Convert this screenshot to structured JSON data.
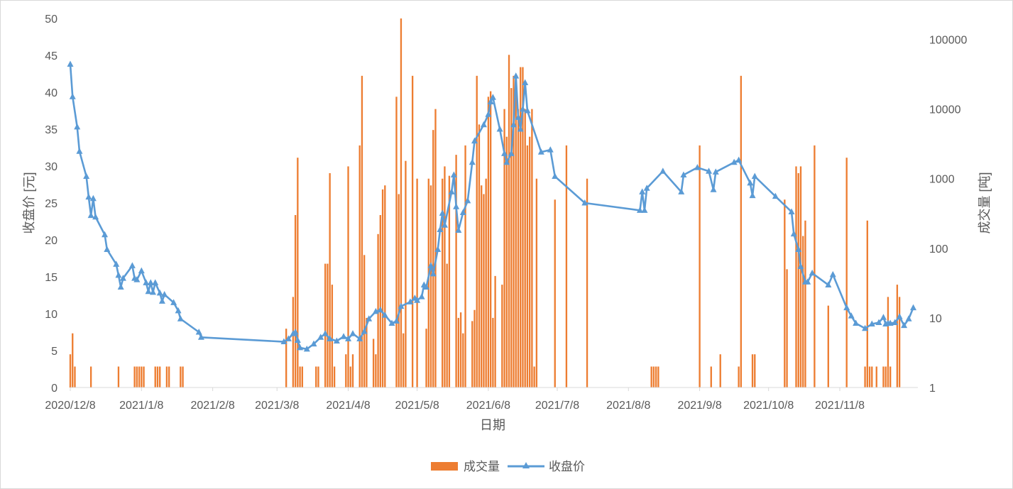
{
  "chart_data": {
    "type": "bar+line",
    "title": "",
    "xlabel": "日期",
    "ylabel_left": "收盘价 [元]",
    "ylabel_right": "成交量 [吨]",
    "ylim_left": [
      0,
      50
    ],
    "ylim_right": [
      1,
      200000
    ],
    "right_axis_scale": "log",
    "grid": false,
    "legend": "bottom",
    "x_ticks": [
      "2020/12/8",
      "2021/1/8",
      "2021/2/8",
      "2021/3/8",
      "2021/4/8",
      "2021/5/8",
      "2021/6/8",
      "2021/7/8",
      "2021/8/8",
      "2021/9/8",
      "2021/10/8",
      "2021/11/8"
    ],
    "y_left_ticks": [
      "0",
      "5",
      "10",
      "15",
      "20",
      "25",
      "30",
      "35",
      "40",
      "45",
      "50"
    ],
    "y_right_ticks": [
      "1",
      "10",
      "100",
      "1000",
      "10000",
      "100000"
    ],
    "colors": {
      "volume": "#ED7D31",
      "close": "#5B9BD5"
    },
    "series": [
      {
        "name": "成交量",
        "kind": "bar",
        "axis": "right",
        "points": [
          [
            "2020-12-08",
            3
          ],
          [
            "2020-12-09",
            6
          ],
          [
            "2020-12-10",
            2
          ],
          [
            "2020-12-17",
            2
          ],
          [
            "2020-12-29",
            2
          ],
          [
            "2021-01-05",
            2
          ],
          [
            "2021-01-06",
            2
          ],
          [
            "2021-01-07",
            2
          ],
          [
            "2021-01-08",
            2
          ],
          [
            "2021-01-09",
            2
          ],
          [
            "2021-01-14",
            2
          ],
          [
            "2021-01-15",
            2
          ],
          [
            "2021-01-16",
            2
          ],
          [
            "2021-01-19",
            2
          ],
          [
            "2021-01-20",
            2
          ],
          [
            "2021-01-25",
            2
          ],
          [
            "2021-01-26",
            2
          ],
          [
            "2021-03-12",
            7
          ],
          [
            "2021-03-15",
            20
          ],
          [
            "2021-03-16",
            300
          ],
          [
            "2021-03-17",
            2000
          ],
          [
            "2021-03-18",
            2
          ],
          [
            "2021-03-19",
            2
          ],
          [
            "2021-03-25",
            2
          ],
          [
            "2021-03-26",
            2
          ],
          [
            "2021-03-29",
            60
          ],
          [
            "2021-03-30",
            60
          ],
          [
            "2021-03-31",
            1200
          ],
          [
            "2021-04-01",
            30
          ],
          [
            "2021-04-02",
            2
          ],
          [
            "2021-04-07",
            3
          ],
          [
            "2021-04-08",
            1500
          ],
          [
            "2021-04-09",
            2
          ],
          [
            "2021-04-10",
            3
          ],
          [
            "2021-04-13",
            3000
          ],
          [
            "2021-04-14",
            30000
          ],
          [
            "2021-04-15",
            80
          ],
          [
            "2021-04-16",
            10
          ],
          [
            "2021-04-19",
            5
          ],
          [
            "2021-04-20",
            3
          ],
          [
            "2021-04-21",
            160
          ],
          [
            "2021-04-22",
            300
          ],
          [
            "2021-04-23",
            700
          ],
          [
            "2021-04-24",
            800
          ],
          [
            "2021-04-29",
            15000
          ],
          [
            "2021-04-30",
            600
          ],
          [
            "2021-05-01",
            200000
          ],
          [
            "2021-05-02",
            6
          ],
          [
            "2021-05-03",
            1800
          ],
          [
            "2021-05-06",
            30000
          ],
          [
            "2021-05-08",
            1000
          ],
          [
            "2021-05-12",
            7
          ],
          [
            "2021-05-13",
            1000
          ],
          [
            "2021-05-14",
            800
          ],
          [
            "2021-05-15",
            5000
          ],
          [
            "2021-05-16",
            10000
          ],
          [
            "2021-05-19",
            1000
          ],
          [
            "2021-05-20",
            1500
          ],
          [
            "2021-05-21",
            60
          ],
          [
            "2021-05-22",
            1100
          ],
          [
            "2021-05-25",
            2200
          ],
          [
            "2021-05-26",
            10
          ],
          [
            "2021-05-27",
            12
          ],
          [
            "2021-05-28",
            6
          ],
          [
            "2021-05-29",
            3000
          ],
          [
            "2021-06-01",
            9
          ],
          [
            "2021-06-02",
            13
          ],
          [
            "2021-06-03",
            30000
          ],
          [
            "2021-06-04",
            6000
          ],
          [
            "2021-06-05",
            800
          ],
          [
            "2021-06-06",
            600
          ],
          [
            "2021-06-07",
            1000
          ],
          [
            "2021-06-08",
            15000
          ],
          [
            "2021-06-09",
            18000
          ],
          [
            "2021-06-10",
            10
          ],
          [
            "2021-06-11",
            40
          ],
          [
            "2021-06-14",
            30
          ],
          [
            "2021-06-15",
            10000
          ],
          [
            "2021-06-16",
            4000
          ],
          [
            "2021-06-17",
            60000
          ],
          [
            "2021-06-18",
            20000
          ],
          [
            "2021-06-19",
            30000
          ],
          [
            "2021-06-20",
            30000
          ],
          [
            "2021-06-21",
            10000
          ],
          [
            "2021-06-22",
            40000
          ],
          [
            "2021-06-23",
            40000
          ],
          [
            "2021-06-24",
            10000
          ],
          [
            "2021-06-25",
            3000
          ],
          [
            "2021-06-26",
            4000
          ],
          [
            "2021-06-27",
            10000
          ],
          [
            "2021-06-28",
            2
          ],
          [
            "2021-06-29",
            1000
          ],
          [
            "2021-07-07",
            500
          ],
          [
            "2021-07-12",
            3000
          ],
          [
            "2021-07-21",
            1000
          ],
          [
            "2021-08-18",
            2
          ],
          [
            "2021-08-19",
            2
          ],
          [
            "2021-08-20",
            2
          ],
          [
            "2021-08-21",
            2
          ],
          [
            "2021-09-08",
            3000
          ],
          [
            "2021-09-13",
            2
          ],
          [
            "2021-09-17",
            3
          ],
          [
            "2021-09-25",
            2
          ],
          [
            "2021-09-26",
            30000
          ],
          [
            "2021-10-01",
            3
          ],
          [
            "2021-10-02",
            3
          ],
          [
            "2021-10-15",
            500
          ],
          [
            "2021-10-16",
            50
          ],
          [
            "2021-10-20",
            1500
          ],
          [
            "2021-10-21",
            1200
          ],
          [
            "2021-10-22",
            1500
          ],
          [
            "2021-10-23",
            150
          ],
          [
            "2021-10-24",
            250
          ],
          [
            "2021-10-28",
            3000
          ],
          [
            "2021-11-03",
            15
          ],
          [
            "2021-11-11",
            2000
          ],
          [
            "2021-11-19",
            2
          ],
          [
            "2021-11-20",
            250
          ],
          [
            "2021-11-21",
            2
          ],
          [
            "2021-11-22",
            2
          ],
          [
            "2021-11-24",
            2
          ],
          [
            "2021-11-27",
            2
          ],
          [
            "2021-11-28",
            2
          ],
          [
            "2021-11-29",
            20
          ],
          [
            "2021-11-30",
            2
          ],
          [
            "2021-12-03",
            30
          ],
          [
            "2021-12-04",
            20
          ]
        ]
      },
      {
        "name": "收盘价",
        "kind": "line",
        "axis": "left",
        "marker": "triangle",
        "points": [
          [
            "2020-12-08",
            43.8
          ],
          [
            "2020-12-09",
            39.4
          ],
          [
            "2020-12-11",
            35.3
          ],
          [
            "2020-12-12",
            32.0
          ],
          [
            "2020-12-15",
            28.6
          ],
          [
            "2020-12-16",
            25.8
          ],
          [
            "2020-12-17",
            23.3
          ],
          [
            "2020-12-18",
            25.6
          ],
          [
            "2020-12-19",
            23.1
          ],
          [
            "2020-12-23",
            20.7
          ],
          [
            "2020-12-24",
            18.7
          ],
          [
            "2020-12-28",
            16.7
          ],
          [
            "2020-12-29",
            15.2
          ],
          [
            "2020-12-30",
            13.6
          ],
          [
            "2020-12-31",
            14.8
          ],
          [
            "2021-01-04",
            16.5
          ],
          [
            "2021-01-05",
            14.8
          ],
          [
            "2021-01-06",
            14.6
          ],
          [
            "2021-01-08",
            15.8
          ],
          [
            "2021-01-10",
            14.2
          ],
          [
            "2021-01-11",
            13.0
          ],
          [
            "2021-01-12",
            14.2
          ],
          [
            "2021-01-13",
            12.9
          ],
          [
            "2021-01-14",
            14.2
          ],
          [
            "2021-01-16",
            12.8
          ],
          [
            "2021-01-17",
            11.7
          ],
          [
            "2021-01-18",
            12.6
          ],
          [
            "2021-01-22",
            11.5
          ],
          [
            "2021-01-24",
            10.4
          ],
          [
            "2021-01-25",
            9.3
          ],
          [
            "2021-02-02",
            7.5
          ],
          [
            "2021-02-03",
            6.8
          ],
          [
            "2021-03-11",
            6.2
          ],
          [
            "2021-03-13",
            6.6
          ],
          [
            "2021-03-15",
            7.3
          ],
          [
            "2021-03-16",
            7.5
          ],
          [
            "2021-03-17",
            6.4
          ],
          [
            "2021-03-18",
            5.4
          ],
          [
            "2021-03-21",
            5.2
          ],
          [
            "2021-03-24",
            5.9
          ],
          [
            "2021-03-27",
            6.8
          ],
          [
            "2021-03-29",
            7.3
          ],
          [
            "2021-03-31",
            6.6
          ],
          [
            "2021-04-03",
            6.3
          ],
          [
            "2021-04-06",
            6.9
          ],
          [
            "2021-04-08",
            6.6
          ],
          [
            "2021-04-10",
            7.3
          ],
          [
            "2021-04-13",
            6.6
          ],
          [
            "2021-04-15",
            7.6
          ],
          [
            "2021-04-17",
            9.3
          ],
          [
            "2021-04-20",
            10.3
          ],
          [
            "2021-04-22",
            10.5
          ],
          [
            "2021-04-24",
            9.8
          ],
          [
            "2021-04-27",
            8.7
          ],
          [
            "2021-04-29",
            9.0
          ],
          [
            "2021-05-01",
            11.0
          ],
          [
            "2021-05-05",
            11.6
          ],
          [
            "2021-05-07",
            12.1
          ],
          [
            "2021-05-08",
            11.8
          ],
          [
            "2021-05-10",
            12.3
          ],
          [
            "2021-05-11",
            13.9
          ],
          [
            "2021-05-12",
            13.6
          ],
          [
            "2021-05-14",
            16.5
          ],
          [
            "2021-05-15",
            15.4
          ],
          [
            "2021-05-17",
            18.7
          ],
          [
            "2021-05-18",
            21.4
          ],
          [
            "2021-05-19",
            23.6
          ],
          [
            "2021-05-20",
            22.0
          ],
          [
            "2021-05-23",
            26.5
          ],
          [
            "2021-05-24",
            28.8
          ],
          [
            "2021-05-25",
            24.5
          ],
          [
            "2021-05-26",
            21.3
          ],
          [
            "2021-05-28",
            23.7
          ],
          [
            "2021-05-30",
            25.3
          ],
          [
            "2021-06-01",
            30.5
          ],
          [
            "2021-06-02",
            33.4
          ],
          [
            "2021-06-06",
            35.6
          ],
          [
            "2021-06-08",
            37.0
          ],
          [
            "2021-06-09",
            38.7
          ],
          [
            "2021-06-10",
            39.3
          ],
          [
            "2021-06-13",
            35.0
          ],
          [
            "2021-06-15",
            31.7
          ],
          [
            "2021-06-16",
            30.5
          ],
          [
            "2021-06-18",
            31.7
          ],
          [
            "2021-06-19",
            35.6
          ],
          [
            "2021-06-20",
            42.2
          ],
          [
            "2021-06-21",
            36.6
          ],
          [
            "2021-06-22",
            35.0
          ],
          [
            "2021-06-23",
            37.7
          ],
          [
            "2021-06-24",
            41.3
          ],
          [
            "2021-06-25",
            37.5
          ],
          [
            "2021-07-01",
            31.9
          ],
          [
            "2021-07-05",
            32.2
          ],
          [
            "2021-07-07",
            28.6
          ],
          [
            "2021-07-20",
            25.0
          ],
          [
            "2021-08-13",
            24.0
          ],
          [
            "2021-08-14",
            26.5
          ],
          [
            "2021-08-15",
            24.0
          ],
          [
            "2021-08-16",
            27.0
          ],
          [
            "2021-08-23",
            29.3
          ],
          [
            "2021-08-31",
            26.5
          ],
          [
            "2021-09-01",
            28.8
          ],
          [
            "2021-09-07",
            29.8
          ],
          [
            "2021-09-12",
            29.3
          ],
          [
            "2021-09-14",
            26.8
          ],
          [
            "2021-09-15",
            29.2
          ],
          [
            "2021-09-23",
            30.5
          ],
          [
            "2021-09-25",
            30.8
          ],
          [
            "2021-09-30",
            27.7
          ],
          [
            "2021-10-01",
            26.0
          ],
          [
            "2021-10-02",
            28.6
          ],
          [
            "2021-10-11",
            25.9
          ],
          [
            "2021-10-18",
            23.8
          ],
          [
            "2021-10-19",
            20.8
          ],
          [
            "2021-10-21",
            18.7
          ],
          [
            "2021-10-22",
            16.4
          ],
          [
            "2021-10-24",
            14.3
          ],
          [
            "2021-10-25",
            14.3
          ],
          [
            "2021-10-27",
            15.5
          ],
          [
            "2021-11-03",
            13.9
          ],
          [
            "2021-11-05",
            15.3
          ],
          [
            "2021-11-11",
            10.8
          ],
          [
            "2021-11-13",
            9.7
          ],
          [
            "2021-11-15",
            8.7
          ],
          [
            "2021-11-19",
            8.0
          ],
          [
            "2021-11-22",
            8.6
          ],
          [
            "2021-11-25",
            8.8
          ],
          [
            "2021-11-27",
            9.5
          ],
          [
            "2021-11-28",
            8.6
          ],
          [
            "2021-11-29",
            8.7
          ],
          [
            "2021-11-30",
            8.7
          ],
          [
            "2021-12-02",
            8.8
          ],
          [
            "2021-12-04",
            9.6
          ],
          [
            "2021-12-06",
            8.4
          ],
          [
            "2021-12-08",
            9.3
          ],
          [
            "2021-12-10",
            10.8
          ]
        ]
      }
    ]
  }
}
